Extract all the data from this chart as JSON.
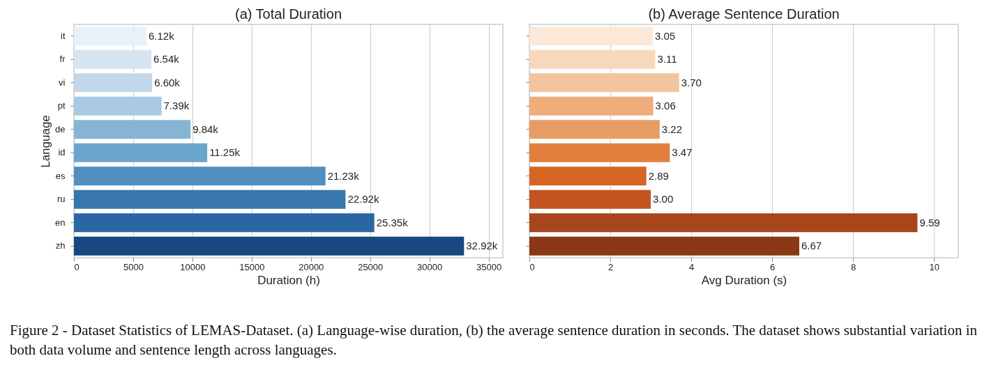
{
  "chart_data": [
    {
      "type": "bar",
      "orientation": "horizontal",
      "title": "(a) Total Duration",
      "xlabel": "Duration (h)",
      "ylabel": "Language",
      "categories": [
        "it",
        "fr",
        "vi",
        "pt",
        "de",
        "id",
        "es",
        "ru",
        "en",
        "zh"
      ],
      "values": [
        6120,
        6540,
        6600,
        7390,
        9840,
        11250,
        21230,
        22920,
        25350,
        32920
      ],
      "value_labels": [
        "6.12k",
        "6.54k",
        "6.60k",
        "7.39k",
        "9.84k",
        "11.25k",
        "21.23k",
        "22.92k",
        "25.35k",
        "32.92k"
      ],
      "colors": [
        "#e8f0f8",
        "#d5e4f2",
        "#c3d7ea",
        "#a8cbe1",
        "#86b4d2",
        "#6aa5cd",
        "#4f90c1",
        "#3777ac",
        "#2b66a4",
        "#17487f"
      ],
      "xlim": [
        0,
        36200
      ],
      "xticks": [
        0,
        5000,
        10000,
        15000,
        20000,
        25000,
        30000,
        35000
      ],
      "grid": "x",
      "annotations": [
        "Figure 2 - Dataset Statistics of LEMAS-Dataset. (a) Language-wise duration, (b) the average sentence duration in seconds. The dataset shows substantial variation in both data volume and sentence length across languages."
      ]
    },
    {
      "type": "bar",
      "orientation": "horizontal",
      "title": "(b) Average Sentence Duration",
      "xlabel": "Avg Duration (s)",
      "categories": [
        "it",
        "fr",
        "vi",
        "pt",
        "de",
        "id",
        "es",
        "ru",
        "en",
        "zh"
      ],
      "values": [
        3.05,
        3.11,
        3.7,
        3.06,
        3.22,
        3.47,
        2.89,
        3.0,
        9.59,
        6.67
      ],
      "value_labels": [
        "3.05",
        "3.11",
        "3.70",
        "3.06",
        "3.22",
        "3.47",
        "2.89",
        "3.00",
        "9.59",
        "6.67"
      ],
      "colors": [
        "#fbe8d8",
        "#f8d8bb",
        "#f2c59f",
        "#efad7c",
        "#e89b62",
        "#e17f3f",
        "#d66524",
        "#c25520",
        "#a6461a",
        "#8a3815"
      ],
      "xlim": [
        0,
        10.6
      ],
      "xticks": [
        0,
        2,
        4,
        6,
        8,
        10
      ],
      "grid": "x",
      "tick_labels": "x"
    }
  ]
}
